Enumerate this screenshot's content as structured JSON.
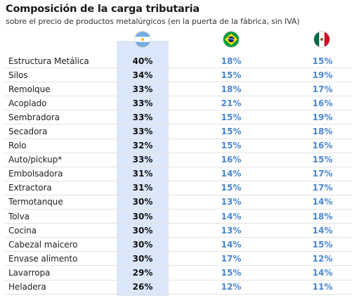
{
  "title": "Composición de la carga tributaria",
  "subtitle": "sobre el precio de  productos metalúrgicos (en la puerta de la fábrica, sin IVA)",
  "colors": {
    "argentina_band": "#dbe7fa",
    "value_blue": "#4a86cf",
    "row_divider": "#e3e3e3"
  },
  "columns": [
    {
      "key": "ar",
      "icon": "argentina-flag-icon"
    },
    {
      "key": "br",
      "icon": "brazil-flag-icon"
    },
    {
      "key": "mx",
      "icon": "mexico-flag-icon"
    }
  ],
  "chart_data": {
    "type": "table",
    "title": "Composición de la carga tributaria",
    "subtitle": "sobre el precio de  productos metalúrgicos (en la puerta de la fábrica, sin IVA)",
    "rows": [
      {
        "producto": "Estructura Metálica",
        "ar": "40%",
        "br": "18%",
        "mx": "15%"
      },
      {
        "producto": "Silos",
        "ar": "34%",
        "br": "15%",
        "mx": "19%"
      },
      {
        "producto": "Remolque",
        "ar": "33%",
        "br": "18%",
        "mx": "17%"
      },
      {
        "producto": "Acoplado",
        "ar": "33%",
        "br": "21%",
        "mx": "16%"
      },
      {
        "producto": "Sembradora",
        "ar": "33%",
        "br": "15%",
        "mx": "19%"
      },
      {
        "producto": "Secadora",
        "ar": "33%",
        "br": "15%",
        "mx": "18%"
      },
      {
        "producto": "Rolo",
        "ar": "32%",
        "br": "15%",
        "mx": "16%"
      },
      {
        "producto": "Auto/pickup*",
        "ar": "33%",
        "br": "16%",
        "mx": "15%"
      },
      {
        "producto": "Embolsadora",
        "ar": "31%",
        "br": "14%",
        "mx": "17%"
      },
      {
        "producto": "Extractora",
        "ar": "31%",
        "br": "15%",
        "mx": "17%"
      },
      {
        "producto": "Termotanque",
        "ar": "30%",
        "br": "13%",
        "mx": "14%"
      },
      {
        "producto": "Tolva",
        "ar": "30%",
        "br": "14%",
        "mx": "18%"
      },
      {
        "producto": "Cocina",
        "ar": "30%",
        "br": "13%",
        "mx": "14%"
      },
      {
        "producto": "Cabezal maicero",
        "ar": "30%",
        "br": "14%",
        "mx": "15%"
      },
      {
        "producto": "Envase alimento",
        "ar": "30%",
        "br": "17%",
        "mx": "12%"
      },
      {
        "producto": "Lavarropa",
        "ar": "29%",
        "br": "15%",
        "mx": "14%"
      },
      {
        "producto": "Heladera",
        "ar": "26%",
        "br": "12%",
        "mx": "11%"
      }
    ]
  }
}
